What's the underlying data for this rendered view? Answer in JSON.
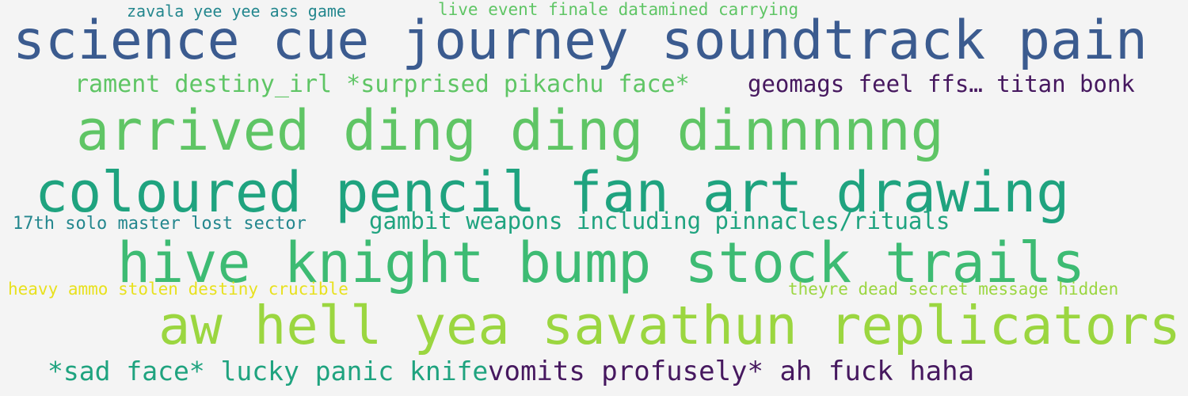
{
  "words": [
    {
      "text": "zavala yee yee ass game"
    },
    {
      "text": "live event finale datamined carrying"
    },
    {
      "text": "science cue journey soundtrack pain"
    },
    {
      "text": "rament destiny_irl *surprised pikachu face*"
    },
    {
      "text": "geomags feel ffs… titan bonk"
    },
    {
      "text": "arrived ding ding dinnnnng"
    },
    {
      "text": "coloured pencil fan art drawing"
    },
    {
      "text": "17th solo master lost sector"
    },
    {
      "text": "gambit weapons including pinnacles/rituals"
    },
    {
      "text": "hive knight bump stock trails"
    },
    {
      "text": "heavy ammo stolen destiny crucible"
    },
    {
      "text": "theyre dead secret message hidden"
    },
    {
      "text": "aw hell yea savathun replicators"
    },
    {
      "text": "*sad face* lucky panic knife"
    },
    {
      "text": "vomits profusely* ah fuck haha"
    }
  ]
}
